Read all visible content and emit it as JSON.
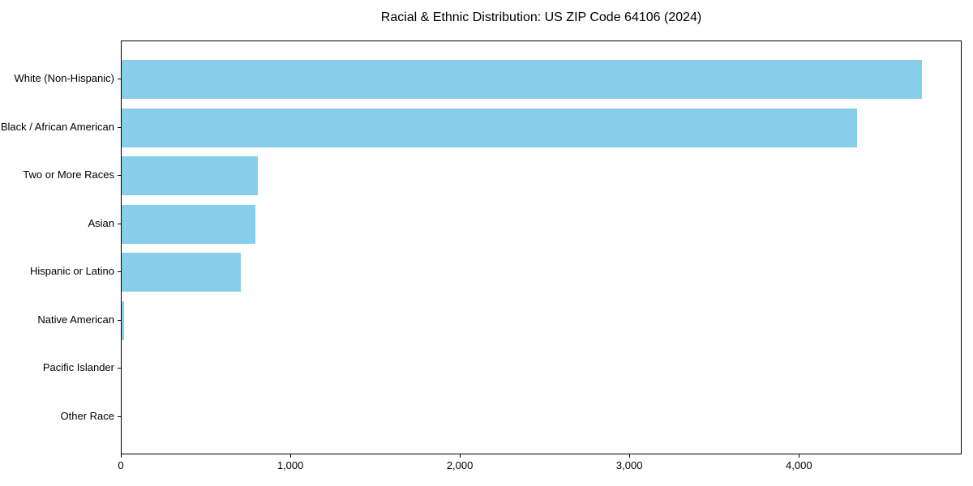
{
  "title": "Racial & Ethnic Distribution: US ZIP Code 64106 (2024)",
  "colors": {
    "bar": "#87CEEB",
    "axis": "#000000",
    "background": "#FFFFFF",
    "text": "#000000"
  },
  "chart_data": {
    "type": "bar",
    "orientation": "horizontal",
    "title": "Racial & Ethnic Distribution: US ZIP Code 64106 (2024)",
    "categories": [
      "White (Non-Hispanic)",
      "Black / African American",
      "Two or More Races",
      "Asian",
      "Hispanic or Latino",
      "Native American",
      "Pacific Islander",
      "Other Race"
    ],
    "values": [
      4720,
      4340,
      805,
      790,
      705,
      15,
      0,
      0
    ],
    "xlabel": "",
    "ylabel": "",
    "xlim": [
      0,
      4960
    ],
    "xticks": [
      0,
      1000,
      2000,
      3000,
      4000
    ],
    "xtick_labels": [
      "0",
      "1,000",
      "2,000",
      "3,000",
      "4,000"
    ],
    "grid": false,
    "legend": null,
    "bar_color": "#87CEEB"
  }
}
